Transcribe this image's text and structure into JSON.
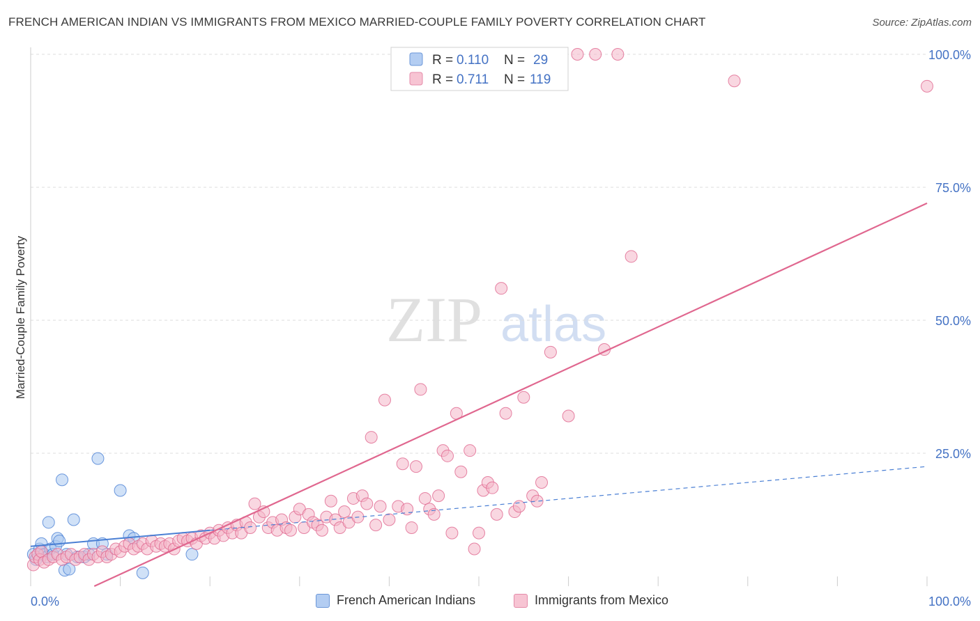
{
  "header": {
    "title": "FRENCH AMERICAN INDIAN VS IMMIGRANTS FROM MEXICO MARRIED-COUPLE FAMILY POVERTY CORRELATION CHART",
    "source": "Source: ZipAtlas.com"
  },
  "watermark": {
    "zip": "ZIP",
    "atlas": "atlas"
  },
  "legend_box": [
    {
      "r_label": "R =",
      "r_value": "0.110",
      "n_label": "N =",
      "n_value": "29"
    },
    {
      "r_label": "R =",
      "r_value": "0.711",
      "n_label": "N =",
      "n_value": "119"
    }
  ],
  "chart_data": {
    "type": "scatter",
    "title": "FRENCH AMERICAN INDIAN VS IMMIGRANTS FROM MEXICO MARRIED-COUPLE FAMILY POVERTY CORRELATION CHART",
    "xlabel": "",
    "ylabel": "Married-Couple Family Poverty",
    "xlim": [
      0,
      100
    ],
    "ylim": [
      0,
      100
    ],
    "x_tick_labels": [
      "0.0%",
      "100.0%"
    ],
    "y_tick_labels": [
      "25.0%",
      "50.0%",
      "75.0%",
      "100.0%"
    ],
    "y_ticks": [
      25,
      50,
      75,
      100
    ],
    "grid": true,
    "legend_placement": "bottom",
    "colors": {
      "blue": "#4a7fd4",
      "blue_fill": "#a9c8f0",
      "pink": "#e0678f",
      "pink_fill": "#f4b6c8",
      "tick_text": "#4472c4"
    },
    "series": [
      {
        "name": "French American Indians",
        "r": 0.11,
        "n": 29,
        "trend": {
          "x0": 0,
          "y0": 7.5,
          "x1": 100,
          "y1": 22.5,
          "solid_until_x": 20
        },
        "points": [
          [
            0.3,
            6
          ],
          [
            0.6,
            5
          ],
          [
            1,
            7
          ],
          [
            1.2,
            8
          ],
          [
            1.5,
            6
          ],
          [
            1.8,
            5.5
          ],
          [
            2,
            12
          ],
          [
            2.2,
            7
          ],
          [
            2.5,
            6
          ],
          [
            2.8,
            7.5
          ],
          [
            3,
            9
          ],
          [
            3.2,
            8.5
          ],
          [
            3.5,
            20
          ],
          [
            3.8,
            3
          ],
          [
            4,
            6
          ],
          [
            4.3,
            3.2
          ],
          [
            4.8,
            12.5
          ],
          [
            5.2,
            5.5
          ],
          [
            6,
            5.5
          ],
          [
            6.5,
            6
          ],
          [
            7,
            8
          ],
          [
            7.5,
            24
          ],
          [
            8,
            8
          ],
          [
            8.5,
            6
          ],
          [
            10,
            18
          ],
          [
            11,
            9.5
          ],
          [
            11.5,
            9
          ],
          [
            12.5,
            2.5
          ],
          [
            18,
            6
          ]
        ]
      },
      {
        "name": "Immigrants from Mexico",
        "r": 0.711,
        "n": 119,
        "trend": {
          "x0": 0,
          "y0": -5.5,
          "x1": 100,
          "y1": 72
        },
        "points": [
          [
            0.3,
            4
          ],
          [
            0.5,
            5.5
          ],
          [
            0.8,
            6
          ],
          [
            1,
            5
          ],
          [
            1.2,
            6.5
          ],
          [
            1.5,
            4.5
          ],
          [
            2,
            5
          ],
          [
            2.5,
            5.5
          ],
          [
            3,
            6
          ],
          [
            3.5,
            5
          ],
          [
            4,
            5.5
          ],
          [
            4.5,
            6
          ],
          [
            5,
            5
          ],
          [
            5.5,
            5.5
          ],
          [
            6,
            6
          ],
          [
            6.5,
            5
          ],
          [
            7,
            6
          ],
          [
            7.5,
            5.5
          ],
          [
            8,
            6.5
          ],
          [
            8.5,
            5.5
          ],
          [
            9,
            6
          ],
          [
            9.5,
            7
          ],
          [
            10,
            6.5
          ],
          [
            10.5,
            7.5
          ],
          [
            11,
            8
          ],
          [
            11.5,
            7
          ],
          [
            12,
            7.5
          ],
          [
            12.5,
            8
          ],
          [
            13,
            7
          ],
          [
            13.5,
            8.5
          ],
          [
            14,
            7.5
          ],
          [
            14.5,
            8
          ],
          [
            15,
            7.5
          ],
          [
            15.5,
            8
          ],
          [
            16,
            7
          ],
          [
            16.5,
            8.5
          ],
          [
            17,
            9
          ],
          [
            17.5,
            8.5
          ],
          [
            18,
            9
          ],
          [
            18.5,
            8
          ],
          [
            19,
            9.5
          ],
          [
            19.5,
            9
          ],
          [
            20,
            10
          ],
          [
            20.5,
            9
          ],
          [
            21,
            10.5
          ],
          [
            21.5,
            9.5
          ],
          [
            22,
            11
          ],
          [
            22.5,
            10
          ],
          [
            23,
            11.5
          ],
          [
            23.5,
            10
          ],
          [
            24,
            12
          ],
          [
            24.5,
            11
          ],
          [
            25,
            15.5
          ],
          [
            25.5,
            13
          ],
          [
            26,
            14
          ],
          [
            26.5,
            11
          ],
          [
            27,
            12
          ],
          [
            27.5,
            10.5
          ],
          [
            28,
            12.5
          ],
          [
            28.5,
            11
          ],
          [
            29,
            10.5
          ],
          [
            29.5,
            13
          ],
          [
            30,
            14.5
          ],
          [
            30.5,
            11
          ],
          [
            31,
            13.5
          ],
          [
            31.5,
            12
          ],
          [
            32,
            11.5
          ],
          [
            32.5,
            10.5
          ],
          [
            33,
            13
          ],
          [
            33.5,
            16
          ],
          [
            34,
            12.5
          ],
          [
            34.5,
            11
          ],
          [
            35,
            14
          ],
          [
            35.5,
            12
          ],
          [
            36,
            16.5
          ],
          [
            36.5,
            13
          ],
          [
            37,
            17
          ],
          [
            37.5,
            15.5
          ],
          [
            38,
            28
          ],
          [
            38.5,
            11.5
          ],
          [
            39,
            15
          ],
          [
            39.5,
            35
          ],
          [
            40,
            12.5
          ],
          [
            41,
            15
          ],
          [
            41.5,
            23
          ],
          [
            42,
            14.5
          ],
          [
            42.5,
            11
          ],
          [
            43,
            22.5
          ],
          [
            43.5,
            37
          ],
          [
            44,
            16.5
          ],
          [
            44.5,
            14.5
          ],
          [
            45,
            13.5
          ],
          [
            45.5,
            17
          ],
          [
            46,
            25.5
          ],
          [
            46.5,
            24.5
          ],
          [
            47,
            10
          ],
          [
            47.5,
            32.5
          ],
          [
            48,
            21.5
          ],
          [
            49,
            25.5
          ],
          [
            49.5,
            7
          ],
          [
            50,
            10
          ],
          [
            50.5,
            18
          ],
          [
            51,
            19.5
          ],
          [
            51.5,
            18.5
          ],
          [
            52,
            13.5
          ],
          [
            53,
            32.5
          ],
          [
            54,
            14
          ],
          [
            54.5,
            15
          ],
          [
            55,
            35.5
          ],
          [
            56,
            17
          ],
          [
            56.5,
            16
          ],
          [
            57,
            19.5
          ],
          [
            58,
            44
          ],
          [
            60,
            32
          ],
          [
            64,
            44.5
          ],
          [
            67,
            62
          ],
          [
            52.5,
            56
          ],
          [
            61,
            100
          ],
          [
            63,
            100
          ],
          [
            65.5,
            100
          ],
          [
            78.5,
            95
          ],
          [
            100,
            94
          ]
        ]
      }
    ]
  }
}
